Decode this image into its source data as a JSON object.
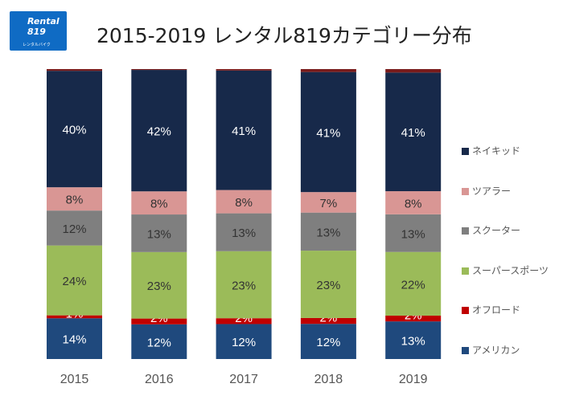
{
  "logo": {
    "text": "Rental 819",
    "sub": "レンタルバイク"
  },
  "chart_data": {
    "type": "bar",
    "stacked": true,
    "normalized": true,
    "title": "2015-2019  レンタル819カテゴリー分布",
    "categories": [
      "2015",
      "2016",
      "2017",
      "2018",
      "2019"
    ],
    "series": [
      {
        "name": "アメリカン",
        "color": "#1f497d",
        "values": [
          14,
          12,
          12,
          12,
          13
        ],
        "labels": [
          "14%",
          "12%",
          "12%",
          "12%",
          "13%"
        ]
      },
      {
        "name": "オフロード",
        "color": "#c00000",
        "values": [
          1,
          2,
          2,
          2,
          2
        ],
        "labels": [
          "1%",
          "2%",
          "2%",
          "2%",
          "2%"
        ]
      },
      {
        "name": "スーパースポーツ",
        "color": "#9bbb59",
        "values": [
          24,
          23,
          23,
          23,
          22
        ],
        "labels": [
          "24%",
          "23%",
          "23%",
          "23%",
          "22%"
        ]
      },
      {
        "name": "スクーター",
        "color": "#7f7f7f",
        "values": [
          12,
          13,
          13,
          13,
          13
        ],
        "labels": [
          "12%",
          "13%",
          "13%",
          "13%",
          "13%"
        ]
      },
      {
        "name": "ツアラー",
        "color": "#d99694",
        "values": [
          8,
          8,
          8,
          7,
          8
        ],
        "labels": [
          "8%",
          "8%",
          "8%",
          "7%",
          "8%"
        ]
      },
      {
        "name": "ネイキッド",
        "color": "#17294a",
        "values": [
          40,
          42,
          41,
          41,
          41
        ],
        "labels": [
          "40%",
          "42%",
          "41%",
          "41%",
          "41%"
        ]
      },
      {
        "color": "#7a1c1c",
        "values": [
          0.6,
          0.3,
          0.5,
          1,
          1.2
        ]
      }
    ],
    "legend_position": "right",
    "grid": false
  }
}
